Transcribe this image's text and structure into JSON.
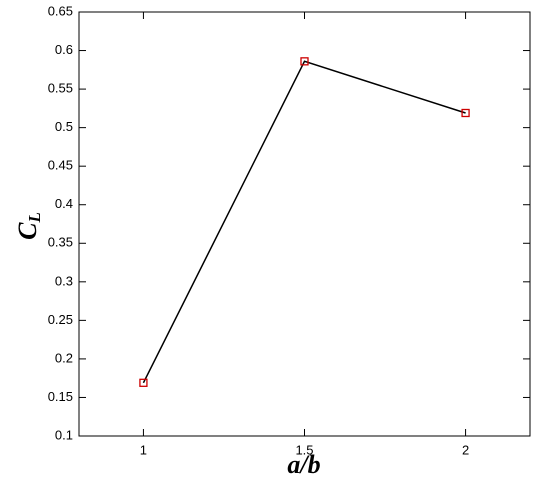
{
  "chart_data": {
    "type": "line",
    "xlabel": "a/b",
    "ylabel": "C",
    "ylabel_sub": "L",
    "x": [
      1,
      1.5,
      2
    ],
    "series": [
      {
        "color": "#000000",
        "marker_color": "#cc0000",
        "values": [
          0.169,
          0.586,
          0.519
        ]
      }
    ],
    "xlim": [
      0.8,
      2.2
    ],
    "xticks": [
      1,
      1.5,
      2
    ],
    "ylim": [
      0.1,
      0.65
    ],
    "yticks": [
      0.1,
      0.15,
      0.2,
      0.25,
      0.3,
      0.35,
      0.4,
      0.45,
      0.5,
      0.55,
      0.6,
      0.65
    ],
    "grid": false
  }
}
